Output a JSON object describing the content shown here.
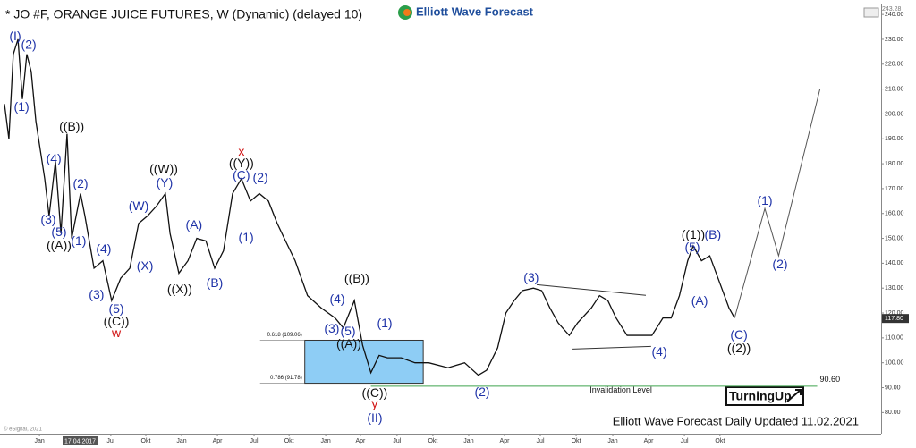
{
  "chart_data": {
    "type": "line",
    "title": "* JO #F, ORANGE JUICE FUTURES, W (Dynamic) (delayed 10)",
    "logo": "Elliott Wave Forecast",
    "footer": "Elliott Wave Forecast Daily Updated 11.02.2021",
    "badge": "TurningUp",
    "copyright": "© eSignal, 2021",
    "cursor_date": "17.04.2017",
    "top_price": "243.28",
    "last_price": {
      "value": 117.8,
      "label": "117.80"
    },
    "xlim": [
      -1.3,
      318.2
    ],
    "ylim": [
      71.5,
      244
    ],
    "yticks": [
      {
        "value": 80,
        "label": "80.00"
      },
      {
        "value": 90,
        "label": "90.00"
      },
      {
        "value": 100,
        "label": "100.00"
      },
      {
        "value": 110,
        "label": "110.00"
      },
      {
        "value": 120,
        "label": "120.00"
      },
      {
        "value": 130,
        "label": "130.00"
      },
      {
        "value": 140,
        "label": "140.00"
      },
      {
        "value": 150,
        "label": "150.00"
      },
      {
        "value": 160,
        "label": "160.00"
      },
      {
        "value": 170,
        "label": "170.00"
      },
      {
        "value": 180,
        "label": "180.00"
      },
      {
        "value": 190,
        "label": "190.00"
      },
      {
        "value": 200,
        "label": "200.00"
      },
      {
        "value": 210,
        "label": "210.00"
      },
      {
        "value": 220,
        "label": "220.00"
      },
      {
        "value": 230,
        "label": "230.00"
      },
      {
        "value": 240,
        "label": "240.00"
      }
    ],
    "xticks": [
      {
        "value": 12.7,
        "label": "Jan"
      },
      {
        "value": 38.6,
        "label": "Jul"
      },
      {
        "value": 51.3,
        "label": "Okt"
      },
      {
        "value": 64.3,
        "label": "Jan"
      },
      {
        "value": 77.3,
        "label": "Apr"
      },
      {
        "value": 90.6,
        "label": "Jul"
      },
      {
        "value": 103.3,
        "label": "Okt"
      },
      {
        "value": 116.6,
        "label": "Jan"
      },
      {
        "value": 129.2,
        "label": "Apr"
      },
      {
        "value": 142.5,
        "label": "Jul"
      },
      {
        "value": 155.5,
        "label": "Okt"
      },
      {
        "value": 168.5,
        "label": "Jan"
      },
      {
        "value": 181.5,
        "label": "Apr"
      },
      {
        "value": 194.5,
        "label": "Jul"
      },
      {
        "value": 207.5,
        "label": "Okt"
      },
      {
        "value": 220.8,
        "label": "Jan"
      },
      {
        "value": 233.8,
        "label": "Apr"
      },
      {
        "value": 246.8,
        "label": "Jul"
      },
      {
        "value": 259.7,
        "label": "Okt"
      }
    ],
    "series": [
      {
        "color": "#111111",
        "x": [
          0,
          1.6,
          3.2,
          4.9,
          6.5,
          8.1,
          9.7,
          11.4,
          14.6,
          16.2,
          18.5,
          20.5,
          22.7,
          24.4,
          27.6,
          29.2,
          32.5,
          35.7,
          38.9,
          42.2,
          45.5,
          48.7,
          51.9,
          55.2,
          58.4,
          60.1,
          63.3,
          66.6,
          69.8,
          73.1,
          76.3,
          79.5,
          82.8,
          86,
          89.3,
          92.5,
          95.8,
          99,
          102,
          105.5,
          110,
          115,
          120,
          123,
          127,
          130,
          133,
          136,
          139,
          144,
          149,
          154,
          161,
          167,
          172,
          175,
          179,
          182,
          185,
          188,
          192,
          195,
          198,
          201,
          205,
          208,
          213,
          216,
          219,
          222,
          226,
          230,
          235,
          239,
          242,
          245,
          248,
          250,
          253,
          256,
          260,
          263,
          265
        ],
        "values": [
          204,
          190,
          224,
          230,
          206,
          224,
          217,
          197,
          174,
          159,
          181,
          152,
          192,
          150,
          168,
          159,
          138,
          141,
          125,
          134,
          138,
          156,
          159,
          163,
          168,
          152,
          136,
          141,
          150,
          149,
          138,
          145,
          168,
          174,
          165,
          168,
          165,
          156,
          149,
          141,
          127,
          122,
          118,
          114,
          125,
          107,
          96,
          103,
          102,
          102,
          100,
          100,
          98,
          100,
          95,
          97,
          106,
          120,
          125,
          129,
          130,
          129,
          122,
          116,
          111,
          116,
          122,
          127,
          125,
          118,
          111,
          111,
          111,
          118,
          118,
          127,
          141,
          147,
          141,
          143,
          131,
          122,
          118
        ]
      },
      {
        "color": "#555555",
        "x": [
          265,
          276,
          281,
          296
        ],
        "values": [
          118,
          162,
          143,
          210
        ]
      }
    ],
    "fib_box": {
      "color": "#8ecdf5",
      "x_range": [
        109,
        152
      ],
      "levels": [
        {
          "value": 109.06,
          "label": "0.618 (109.06)"
        },
        {
          "value": 91.78,
          "label": "0.786 (91.78)"
        }
      ]
    },
    "invalidation": {
      "value": 90.6,
      "label": "90.60",
      "text": "Invalidation Level",
      "color": "#3fa34d",
      "x_range": [
        133,
        295
      ]
    },
    "triangle": [
      {
        "x": [
          193.2,
          232.8
        ],
        "values": [
          131.4,
          127.1
        ]
      },
      {
        "x": [
          206.2,
          234.7
        ],
        "values": [
          105.5,
          106.6
        ]
      }
    ],
    "annotations": [
      {
        "text": "(I)",
        "x": 3.9,
        "y": 231,
        "color": "#1f33a8"
      },
      {
        "text": "(2)",
        "x": 8.8,
        "y": 227.5,
        "color": "#1f33a8"
      },
      {
        "text": "(1)",
        "x": 6.2,
        "y": 202.6,
        "color": "#1f33a8"
      },
      {
        "text": "((B))",
        "x": 24.4,
        "y": 194.7,
        "color": "#111111"
      },
      {
        "text": "(4)",
        "x": 17.9,
        "y": 181.8,
        "color": "#1f33a8"
      },
      {
        "text": "(2)",
        "x": 27.6,
        "y": 171.7,
        "color": "#1f33a8"
      },
      {
        "text": "(3)",
        "x": 15.9,
        "y": 157.3,
        "color": "#1f33a8"
      },
      {
        "text": "(5)",
        "x": 19.8,
        "y": 152.3,
        "color": "#1f33a8"
      },
      {
        "text": "((A))",
        "x": 19.8,
        "y": 146.9,
        "color": "#111111"
      },
      {
        "text": "(1)",
        "x": 26.9,
        "y": 148.7,
        "color": "#1f33a8"
      },
      {
        "text": "(4)",
        "x": 36,
        "y": 145.4,
        "color": "#1f33a8"
      },
      {
        "text": "(3)",
        "x": 33.4,
        "y": 127.1,
        "color": "#1f33a8"
      },
      {
        "text": "(5)",
        "x": 40.6,
        "y": 121.3,
        "color": "#1f33a8"
      },
      {
        "text": "((C))",
        "x": 40.6,
        "y": 116.3,
        "color": "#111111"
      },
      {
        "text": "w",
        "x": 40.6,
        "y": 111.6,
        "color": "#d01010"
      },
      {
        "text": "(W)",
        "x": 48.7,
        "y": 162.7,
        "color": "#1f33a8"
      },
      {
        "text": "(X)",
        "x": 51,
        "y": 138.6,
        "color": "#1f33a8"
      },
      {
        "text": "((W))",
        "x": 57.8,
        "y": 177.5,
        "color": "#111111"
      },
      {
        "text": "(Y)",
        "x": 58.1,
        "y": 172,
        "color": "#1f33a8"
      },
      {
        "text": "((X))",
        "x": 63.6,
        "y": 129.3,
        "color": "#111111"
      },
      {
        "text": "(A)",
        "x": 68.8,
        "y": 155.2,
        "color": "#1f33a8"
      },
      {
        "text": "(B)",
        "x": 76.3,
        "y": 131.8,
        "color": "#1f33a8"
      },
      {
        "text": "x",
        "x": 86,
        "y": 184.6,
        "color": "#d01010"
      },
      {
        "text": "((Y))",
        "x": 86,
        "y": 180,
        "color": "#111111"
      },
      {
        "text": "(C)",
        "x": 86,
        "y": 175,
        "color": "#1f33a8"
      },
      {
        "text": "(2)",
        "x": 92.9,
        "y": 174.2,
        "color": "#1f33a8"
      },
      {
        "text": "(1)",
        "x": 87.7,
        "y": 150.1,
        "color": "#1f33a8"
      },
      {
        "text": "((B))",
        "x": 127.9,
        "y": 133.6,
        "color": "#111111"
      },
      {
        "text": "(4)",
        "x": 120.8,
        "y": 125.3,
        "color": "#1f33a8"
      },
      {
        "text": "(3)",
        "x": 118.8,
        "y": 113.4,
        "color": "#1f33a8"
      },
      {
        "text": "(5)",
        "x": 124.7,
        "y": 112.3,
        "color": "#1f33a8"
      },
      {
        "text": "((A))",
        "x": 125,
        "y": 107.3,
        "color": "#111111"
      },
      {
        "text": "(1)",
        "x": 138,
        "y": 115.6,
        "color": "#1f33a8"
      },
      {
        "text": "((C))",
        "x": 134.4,
        "y": 87.5,
        "color": "#111111"
      },
      {
        "text": "y",
        "x": 134.4,
        "y": 83.2,
        "color": "#d01010"
      },
      {
        "text": "(II)",
        "x": 134.4,
        "y": 77.5,
        "color": "#1f33a8"
      },
      {
        "text": "(2)",
        "x": 173.4,
        "y": 87.9,
        "color": "#1f33a8"
      },
      {
        "text": "(3)",
        "x": 191.2,
        "y": 133.9,
        "color": "#1f33a8"
      },
      {
        "text": "(4)",
        "x": 237.7,
        "y": 104.1,
        "color": "#1f33a8"
      },
      {
        "text": "((1))",
        "x": 250,
        "y": 151.2,
        "color": "#111111"
      },
      {
        "text": "(5)",
        "x": 249.7,
        "y": 146.2,
        "color": "#1f33a8"
      },
      {
        "text": "(B)",
        "x": 257.1,
        "y": 151.2,
        "color": "#1f33a8"
      },
      {
        "text": "(A)",
        "x": 252.3,
        "y": 124.6,
        "color": "#1f33a8"
      },
      {
        "text": "(C)",
        "x": 266.6,
        "y": 110.9,
        "color": "#1f33a8"
      },
      {
        "text": "((2))",
        "x": 266.6,
        "y": 105.5,
        "color": "#111111"
      },
      {
        "text": "(1)",
        "x": 276,
        "y": 164.9,
        "color": "#1f33a8"
      },
      {
        "text": "(2)",
        "x": 281.5,
        "y": 139.3,
        "color": "#1f33a8"
      }
    ]
  }
}
